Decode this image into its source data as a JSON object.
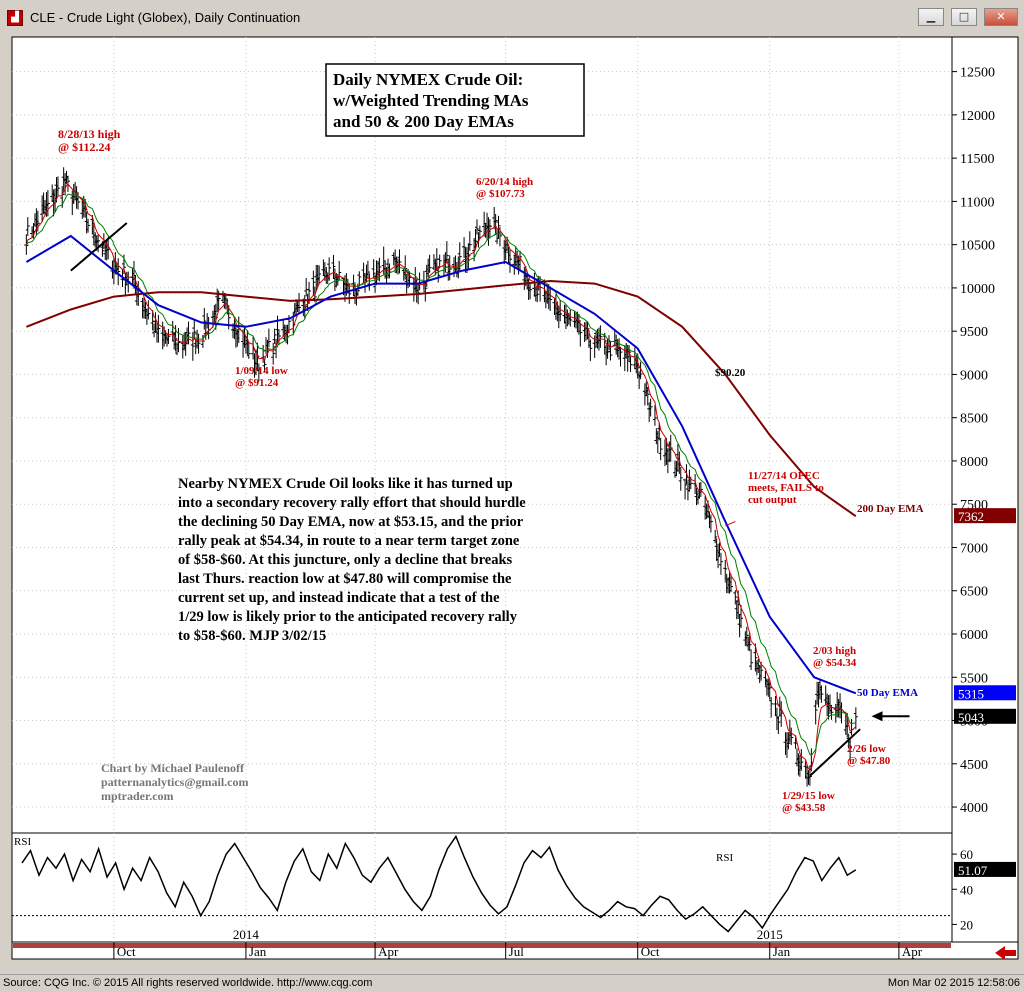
{
  "window": {
    "title": "CLE - Crude Light (Globex), Daily Continuation",
    "app_icon": "chart-icon",
    "buttons": [
      "minimize-icon",
      "maximize-icon",
      "close-icon"
    ]
  },
  "status": {
    "left": "Source: CQG Inc. © 2015 All rights reserved worldwide. http://www.cqg.com",
    "right": "Mon Mar 02 2015 12:58:06"
  },
  "colors": {
    "price_bars": "#000000",
    "ema200": "#800000",
    "ema50": "#0000cc",
    "wma_fast": "#cc0000",
    "wma_mid": "#008000",
    "annotation": "#cc0000",
    "rsi": "#000000",
    "nav_arrow": "#cc0000"
  },
  "chart_data": [
    {
      "type": "line",
      "panel": "price",
      "title": "Daily NYMEX Crude Oil:\nw/Weighted Trending MAs\nand 50 & 200 Day EMAs",
      "title_lines": [
        "Daily NYMEX Crude Oil:",
        "w/Weighted Trending MAs",
        "and 50 & 200 Day EMAs"
      ],
      "ylim": [
        3700,
        12900
      ],
      "y_ticks": [
        4000,
        4500,
        5000,
        5500,
        6000,
        6500,
        7000,
        7500,
        8000,
        8500,
        9000,
        9500,
        10000,
        10500,
        11000,
        11500,
        12000,
        12500
      ],
      "x_ticks": [
        "Oct",
        "Jan",
        "Apr",
        "Jul",
        "Oct",
        "Jan",
        "Apr"
      ],
      "year_labels": [
        "2014",
        "2015"
      ],
      "grid": true,
      "series": [
        {
          "name": "price",
          "x": [
            "2013-08-01",
            "2013-08-28",
            "2013-09-15",
            "2013-10-01",
            "2013-10-15",
            "2013-11-01",
            "2013-11-15",
            "2013-12-01",
            "2013-12-15",
            "2014-01-09",
            "2014-01-25",
            "2014-02-10",
            "2014-03-01",
            "2014-03-15",
            "2014-04-01",
            "2014-04-15",
            "2014-05-01",
            "2014-05-15",
            "2014-06-01",
            "2014-06-20",
            "2014-07-01",
            "2014-07-15",
            "2014-08-01",
            "2014-08-15",
            "2014-09-01",
            "2014-09-15",
            "2014-10-01",
            "2014-10-15",
            "2014-11-01",
            "2014-11-15",
            "2014-11-27",
            "2014-12-10",
            "2014-12-20",
            "2015-01-01",
            "2015-01-15",
            "2015-01-29",
            "2015-02-03",
            "2015-02-10",
            "2015-02-20",
            "2015-02-26",
            "2015-03-02"
          ],
          "values": [
            10600,
            11224,
            10700,
            10250,
            10050,
            9450,
            9350,
            9450,
            9850,
            9124,
            9450,
            9850,
            10200,
            9950,
            10150,
            10300,
            10000,
            10250,
            10350,
            10773,
            10500,
            10150,
            9800,
            9600,
            9350,
            9300,
            9100,
            8300,
            7850,
            7550,
            6950,
            6250,
            5700,
            5300,
            4750,
            4358,
            5434,
            5150,
            5050,
            4780,
            5043
          ]
        },
        {
          "name": "50 Day EMA",
          "x": [
            "2013-08-01",
            "2013-09-01",
            "2013-10-01",
            "2013-11-01",
            "2013-12-01",
            "2014-01-01",
            "2014-02-01",
            "2014-03-01",
            "2014-04-01",
            "2014-05-01",
            "2014-06-01",
            "2014-07-01",
            "2014-08-01",
            "2014-09-01",
            "2014-10-01",
            "2014-11-01",
            "2014-12-01",
            "2015-01-01",
            "2015-02-01",
            "2015-03-02"
          ],
          "values": [
            10300,
            10600,
            10200,
            9800,
            9600,
            9550,
            9650,
            9900,
            10050,
            10050,
            10200,
            10300,
            10000,
            9700,
            9300,
            8400,
            7300,
            6200,
            5500,
            5315
          ]
        },
        {
          "name": "200 Day EMA",
          "x": [
            "2013-08-01",
            "2013-09-01",
            "2013-10-01",
            "2013-11-01",
            "2013-12-01",
            "2014-01-01",
            "2014-02-01",
            "2014-03-01",
            "2014-04-01",
            "2014-05-01",
            "2014-06-01",
            "2014-07-01",
            "2014-08-01",
            "2014-09-01",
            "2014-10-01",
            "2014-11-01",
            "2014-12-01",
            "2015-01-01",
            "2015-02-01",
            "2015-03-02"
          ],
          "values": [
            9550,
            9750,
            9900,
            9950,
            9950,
            9900,
            9850,
            9870,
            9900,
            9930,
            9980,
            10030,
            10080,
            10050,
            9900,
            9550,
            9000,
            8300,
            7700,
            7362
          ]
        }
      ],
      "last_values": {
        "ema200": "7362",
        "ema50": "5315",
        "price": "5043"
      },
      "annotations": [
        {
          "name": "aug-2013-high",
          "lines": [
            "8/28/13 high",
            "@ $112.24"
          ]
        },
        {
          "name": "jun-2014-high",
          "lines": [
            "6/20/14 high",
            "@ $107.73"
          ]
        },
        {
          "name": "jan-2014-low",
          "lines": [
            "1/09/14 low",
            "@ $91.24"
          ]
        },
        {
          "name": "level-9020",
          "lines": [
            "$90.20"
          ]
        },
        {
          "name": "opec-note",
          "lines": [
            "11/27/14 OPEC",
            "meets, FAILS to",
            "cut output"
          ]
        },
        {
          "name": "ema200-label",
          "lines": [
            "200 Day EMA"
          ]
        },
        {
          "name": "feb-2015-high",
          "lines": [
            "2/03 high",
            "@ $54.34"
          ]
        },
        {
          "name": "ema50-label",
          "lines": [
            "50 Day EMA"
          ]
        },
        {
          "name": "feb26-low",
          "lines": [
            "2/26 low",
            "@ $47.80"
          ]
        },
        {
          "name": "jan-2015-low",
          "lines": [
            "1/29/15 low",
            "@ $43.58"
          ]
        }
      ],
      "commentary_lines": [
        "Nearby NYMEX Crude Oil looks like it has turned up",
        "into a secondary recovery rally effort that should hurdle",
        "the declining 50 Day EMA, now at $53.15, and the prior",
        "rally peak at $54.34, in route to a near term target zone",
        "of $58-$60. At this juncture, only a decline that breaks",
        "last Thurs. reaction low at $47.80 will compromise the",
        "current set up, and instead indicate that a test of the",
        "1/29 low is likely prior to the anticipated recovery rally",
        "to $58-$60.  MJP  3/02/15"
      ],
      "credits": [
        "Chart by Michael Paulenoff",
        "patternanalytics@gmail.com",
        "mptrader.com"
      ]
    },
    {
      "type": "line",
      "panel": "rsi",
      "label": "RSI",
      "panel_title": "RSI",
      "ylim": [
        10,
        72
      ],
      "y_ticks": [
        20,
        40,
        60
      ],
      "reference_level": 25,
      "last_value": "51.07",
      "series": [
        {
          "name": "RSI",
          "values": [
            55,
            62,
            48,
            58,
            52,
            60,
            45,
            57,
            50,
            63,
            47,
            55,
            40,
            52,
            45,
            58,
            50,
            38,
            30,
            44,
            36,
            25,
            33,
            48,
            60,
            66,
            58,
            50,
            41,
            35,
            28,
            44,
            56,
            63,
            50,
            45,
            60,
            52,
            66,
            58,
            48,
            44,
            52,
            58,
            49,
            40,
            33,
            28,
            36,
            51,
            63,
            70,
            58,
            47,
            38,
            31,
            26,
            30,
            42,
            55,
            62,
            58,
            64,
            51,
            42,
            35,
            30,
            27,
            24,
            28,
            33,
            30,
            29,
            25,
            31,
            36,
            34,
            28,
            23,
            26,
            30,
            25,
            20,
            16,
            22,
            28,
            24,
            18,
            26,
            33,
            40,
            50,
            58,
            56,
            45,
            52,
            58,
            48,
            51
          ]
        }
      ]
    }
  ]
}
